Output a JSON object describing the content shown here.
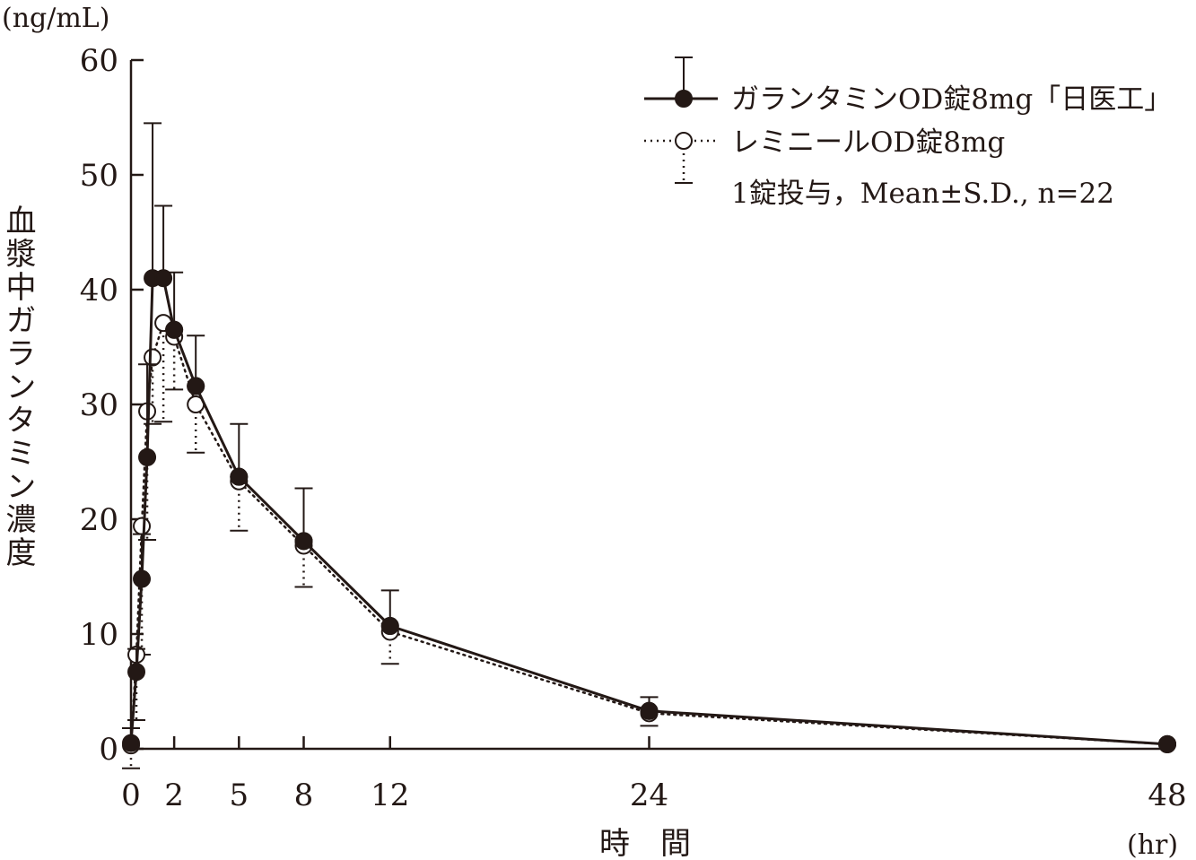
{
  "chart_data": {
    "type": "line",
    "y_unit": "(ng/mL)",
    "x_unit": "(hr)",
    "xlabel": "時　間",
    "ylabel": "血漿中ガランタミン濃度",
    "xlim": [
      0,
      48
    ],
    "ylim": [
      0,
      60
    ],
    "x_ticks": [
      0,
      2,
      5,
      8,
      12,
      24,
      48
    ],
    "y_ticks": [
      0,
      10,
      20,
      30,
      40,
      50,
      60
    ],
    "grid": false,
    "legend_position": "top-right",
    "legend_note": "1錠投与，Mean±S.D., n=22",
    "series": [
      {
        "name": "ガランタミンOD錠8mg「日医工」",
        "marker": "filled-circle",
        "line_style": "solid",
        "color": "#231815",
        "x": [
          0,
          0.25,
          0.5,
          0.75,
          1,
          1.5,
          2,
          3,
          5,
          8,
          12,
          24,
          48
        ],
        "y": [
          0.5,
          6.7,
          14.8,
          25.4,
          41.0,
          41.0,
          36.5,
          31.6,
          23.7,
          18.1,
          10.7,
          3.3,
          0.4
        ],
        "sd_upper": [
          1.8,
          8.7,
          18.7,
          33.5,
          54.5,
          47.3,
          41.5,
          36.0,
          28.3,
          22.7,
          13.8,
          4.5,
          null
        ]
      },
      {
        "name": "レミニールOD錠8mg",
        "marker": "open-circle",
        "line_style": "dotted",
        "color": "#231815",
        "x": [
          0,
          0.25,
          0.5,
          0.75,
          1,
          1.5,
          2,
          3,
          5,
          8,
          12,
          24,
          48
        ],
        "y": [
          0.3,
          8.2,
          19.4,
          29.4,
          34.1,
          37.1,
          35.9,
          30.0,
          23.3,
          17.7,
          10.2,
          3.1,
          0.4
        ],
        "sd_lower": [
          -1.7,
          2.5,
          8.2,
          18.2,
          28.3,
          28.5,
          31.3,
          25.8,
          19.0,
          14.1,
          7.4,
          2.0,
          null
        ]
      }
    ]
  }
}
